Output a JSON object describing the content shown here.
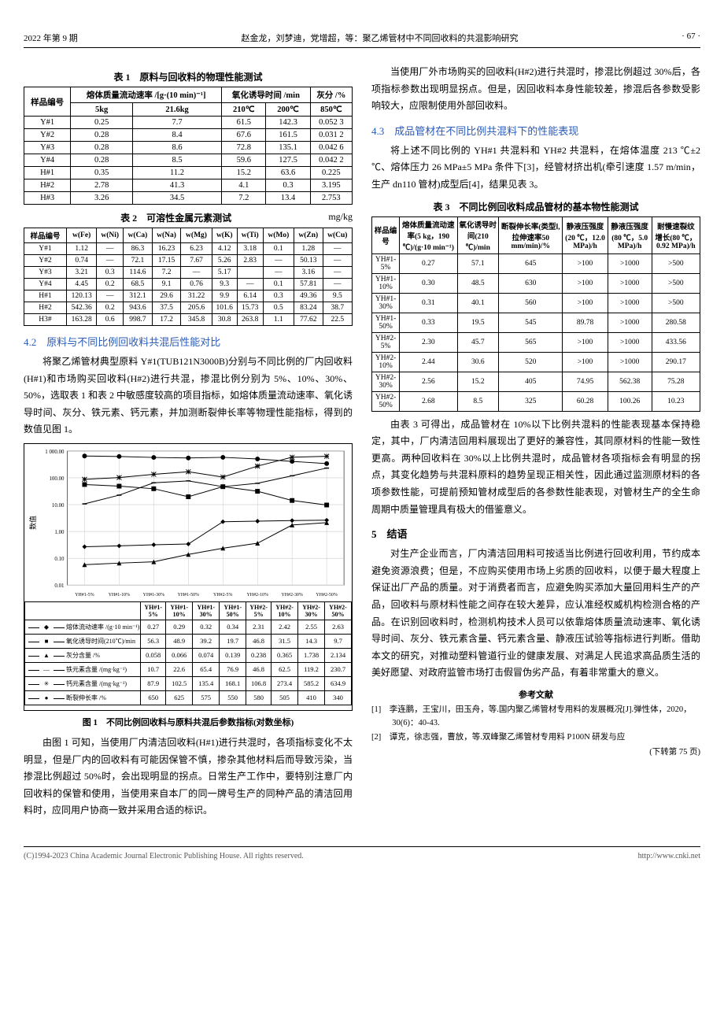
{
  "header": {
    "issue": "2022 年第 9 期",
    "authors_title": "赵金龙，刘梦迪，党增超，等：聚乙烯管材中不同回收料的共混影响研究",
    "page": "· 67 ·"
  },
  "table1": {
    "caption": "表 1　原料与回收料的物理性能测试",
    "headers": {
      "sample": "样品编号",
      "mfr": "熔体质量流动速率 /[g·(10 min)⁻¹]",
      "oit": "氧化诱导时间 /min",
      "ash": "灰分 /%",
      "sub": {
        "c5kg": "5kg",
        "c216kg": "21.6kg",
        "c210": "210℃",
        "c200": "200℃",
        "c850": "850℃"
      }
    },
    "rows": [
      {
        "id": "Y#1",
        "v": [
          "0.25",
          "7.7",
          "61.5",
          "142.3",
          "0.052 3"
        ]
      },
      {
        "id": "Y#2",
        "v": [
          "0.28",
          "8.4",
          "67.6",
          "161.5",
          "0.031 2"
        ]
      },
      {
        "id": "Y#3",
        "v": [
          "0.28",
          "8.6",
          "72.8",
          "135.1",
          "0.042 6"
        ]
      },
      {
        "id": "Y#4",
        "v": [
          "0.28",
          "8.5",
          "59.6",
          "127.5",
          "0.042 2"
        ]
      },
      {
        "id": "H#1",
        "v": [
          "0.35",
          "11.2",
          "15.2",
          "63.6",
          "0.225"
        ]
      },
      {
        "id": "H#2",
        "v": [
          "2.78",
          "41.3",
          "4.1",
          "0.3",
          "3.195"
        ]
      },
      {
        "id": "H#3",
        "v": [
          "3.26",
          "34.5",
          "7.2",
          "13.4",
          "2.753"
        ]
      }
    ]
  },
  "table2": {
    "caption": "表 2　可溶性金属元素测试",
    "unit": "mg/kg",
    "headers": [
      "样品编号",
      "w(Fe)",
      "w(Ni)",
      "w(Ca)",
      "w(Na)",
      "w(Mg)",
      "w(K)",
      "w(Ti)",
      "w(Mo)",
      "w(Zn)",
      "w(Cu)"
    ],
    "rows": [
      [
        "Y#1",
        "1.12",
        "—",
        "86.3",
        "16.23",
        "6.23",
        "4.12",
        "3.18",
        "0.1",
        "1.28",
        "—"
      ],
      [
        "Y#2",
        "0.74",
        "—",
        "72.1",
        "17.15",
        "7.67",
        "5.26",
        "2.83",
        "—",
        "50.13",
        "—"
      ],
      [
        "Y#3",
        "3.21",
        "0.3",
        "114.6",
        "7.2",
        "—",
        "5.17",
        "",
        "—",
        "3.16",
        "—"
      ],
      [
        "Y#4",
        "4.45",
        "0.2",
        "68.5",
        "9.1",
        "0.76",
        "9.3",
        "—",
        "0.1",
        "57.81",
        "—"
      ],
      [
        "H#1",
        "120.13",
        "—",
        "312.1",
        "29.6",
        "31.22",
        "9.9",
        "6.14",
        "0.3",
        "49.36",
        "9.5"
      ],
      [
        "H#2",
        "542.36",
        "0.2",
        "943.6",
        "37.5",
        "205.6",
        "101.6",
        "15.73",
        "0.5",
        "83.24",
        "38.7"
      ],
      [
        "H3#",
        "163.28",
        "0.6",
        "998.7",
        "17.2",
        "345.8",
        "30.8",
        "263.8",
        "1.1",
        "77.62",
        "22.5"
      ]
    ]
  },
  "sec42": {
    "title": "4.2　原料与不同比例回收料共混后性能对比",
    "para": "将聚乙烯管材典型原料 Y#1(TUB121N3000B)分别与不同比例的厂内回收料(H#1)和市场购买回收料(H#2)进行共混，掺混比例分别为 5%、10%、30%、50%，选取表 1 和表 2 中敏感度较高的项目指标，如熔体质量流动速率、氧化诱导时间、灰分、铁元素、钙元素，并加测断裂伸长率等物理性能指标，得到的数值见图 1。"
  },
  "chart1": {
    "type": "line_log",
    "caption": "图 1　不同比例回收料与原料共混后参数指标(对数坐标)",
    "xlabels": [
      "YH#1-5%",
      "YH#1-10%",
      "YH#1-30%",
      "YH#1-50%",
      "YH#2-5%",
      "YH#2-10%",
      "YH#2-30%",
      "YH#2-50%"
    ],
    "ylabel": "数值",
    "ylim": [
      0.01,
      1000
    ],
    "yticks": [
      "0.01",
      "0.10",
      "1.00",
      "10.00",
      "100.00",
      "1 000.00"
    ],
    "grid_color": "#bdbdbd",
    "background_color": "#ffffff",
    "series": [
      {
        "name": "熔体流动速率 /(g·10 min⁻¹)",
        "marker": "◆",
        "color": "#000",
        "values": [
          0.27,
          0.29,
          0.32,
          0.34,
          2.31,
          2.42,
          2.55,
          2.63
        ]
      },
      {
        "name": "氧化诱导时间(210℃)/min",
        "marker": "■",
        "color": "#000",
        "values": [
          56.3,
          48.9,
          39.2,
          19.7,
          46.8,
          31.5,
          14.3,
          9.7
        ]
      },
      {
        "name": "灰分含量 /%",
        "marker": "▲",
        "color": "#000",
        "values": [
          0.058,
          0.066,
          0.074,
          0.139,
          0.238,
          0.365,
          1.738,
          2.134
        ]
      },
      {
        "name": "铁元素含量 /(mg·kg⁻¹)",
        "marker": "—",
        "color": "#000",
        "values": [
          10.7,
          22.6,
          65.4,
          76.9,
          46.8,
          62.5,
          119.2,
          230.7
        ]
      },
      {
        "name": "钙元素含量 /(mg·kg⁻¹)",
        "marker": "✳",
        "color": "#000",
        "values": [
          87.9,
          102.5,
          135.4,
          168.1,
          106.8,
          273.4,
          585.2,
          634.9
        ]
      },
      {
        "name": "断裂伸长率 /%",
        "marker": "●",
        "color": "#000",
        "values": [
          650,
          625,
          575,
          550,
          580,
          505,
          410,
          340
        ]
      }
    ]
  },
  "post_fig1_para": "由图 1 可知，当使用厂内清洁回收料(H#1)进行共混时，各项指标变化不太明显，但是厂内的回收料有可能因保管不慎，掺杂其他材料后而导致污染，当掺混比例超过 50%时，会出现明显的拐点。日常生产工作中，要特别注意厂内回收料的保管和使用，当使用来自本厂的同一牌号生产的同种产品的清洁回用料时，应同用户协商一致并采用合适的标识。",
  "right_top_para": "当使用厂外市场购买的回收料(H#2)进行共混时，掺混比例超过 30%后，各项指标参数出现明显拐点。但是，因回收料本身性能较差，掺混后各参数受影响较大，应限制使用外部回收料。",
  "sec43": {
    "title": "4.3　成品管材在不同比例共混料下的性能表现",
    "para": "将上述不同比例的 YH#1 共混料和 YH#2 共混料，在熔体温度 213 ℃±2 ℃、熔体压力 26 MPa±5 MPa 条件下[3]，经管材挤出机(牵引速度 1.57 m/min，生产 dn110 管材)成型后[4]，结果见表 3。"
  },
  "table3": {
    "caption": "表 3　不同比例回收料成品管材的基本物性能测试",
    "headers": [
      "样品编号",
      "熔体质量流动速率(5 kg，190 ℃)/(g·10 min⁻¹)",
      "氧化诱导时间(210 ℃)/min",
      "断裂伸长率(类型Ⅰ,拉伸速率50 mm/min)/%",
      "静液压强度(20 ℃，12.0 MPa)/h",
      "静液压强度(80 ℃，5.0 MPa)/h",
      "耐慢速裂纹增长(80 ℃，0.92 MPa)/h"
    ],
    "rows": [
      [
        "YH#1-5%",
        "0.27",
        "57.1",
        "645",
        ">100",
        ">1000",
        ">500"
      ],
      [
        "YH#1-10%",
        "0.30",
        "48.5",
        "630",
        ">100",
        ">1000",
        ">500"
      ],
      [
        "YH#1-30%",
        "0.31",
        "40.1",
        "560",
        ">100",
        ">1000",
        ">500"
      ],
      [
        "YH#1-50%",
        "0.33",
        "19.5",
        "545",
        "89.78",
        ">1000",
        "280.58"
      ],
      [
        "YH#2-5%",
        "2.30",
        "45.7",
        "565",
        ">100",
        ">1000",
        "433.56"
      ],
      [
        "YH#2-10%",
        "2.44",
        "30.6",
        "520",
        ">100",
        ">1000",
        "290.17"
      ],
      [
        "YH#2-30%",
        "2.56",
        "15.2",
        "405",
        "74.95",
        "562.38",
        "75.28"
      ],
      [
        "YH#2-50%",
        "2.68",
        "8.5",
        "325",
        "60.28",
        "100.26",
        "10.23"
      ]
    ]
  },
  "post_t3_para": "由表 3 可得出，成品管材在 10%以下比例共混料的性能表现基本保持稳定，其中，厂内清洁回用料展现出了更好的兼容性，其同原材料的性能一致性更高。两种回收料在 30%以上比例共混时，成品管材各项指标会有明显的拐点，其变化趋势与共混料原料的趋势呈现正相关性，因此通过监测原材料的各项参数性能，可提前预知管材成型后的各参数性能表现，对管材生产的全生命周期中质量管理具有极大的借鉴意义。",
  "sec5": {
    "title": "5　结语",
    "para": "对生产企业而言，厂内清洁回用料可按适当比例进行回收利用，节约成本避免资源浪费；但是，不应购买使用市场上劣质的回收料，以便于最大程度上保证出厂产品的质量。对于消费者而言，应避免购买添加大量回用料生产的产品，回收料与原材料性能之间存在较大差异，应认准经权威机构检测合格的产品。在识别回收料时，检测机构技术人员可以依靠熔体质量流动速率、氧化诱导时间、灰分、铁元素含量、钙元素含量、静液压试验等指标进行判断。借助本文的研究，对推动塑料管道行业的健康发展、对满足人民追求高品质生活的美好愿望、对政府监管市场打击假冒伪劣产品，有着非常重大的意义。"
  },
  "refs": {
    "title": "参考文献",
    "items": [
      "[1]　李连鹏，王宝川，田玉舟，等.国内聚乙烯管材专用料的发展概况[J].弹性体，2020，30(6)：40-43.",
      "[2]　谭克，徐志强，曹放，等.双峰聚乙烯管材专用料 P100N 研发与应",
      "(下转第 75 页)"
    ]
  },
  "footer": {
    "left": "(C)1994-2023 China Academic Journal Electronic Publishing House. All rights reserved.",
    "right": "http://www.cnki.net"
  }
}
